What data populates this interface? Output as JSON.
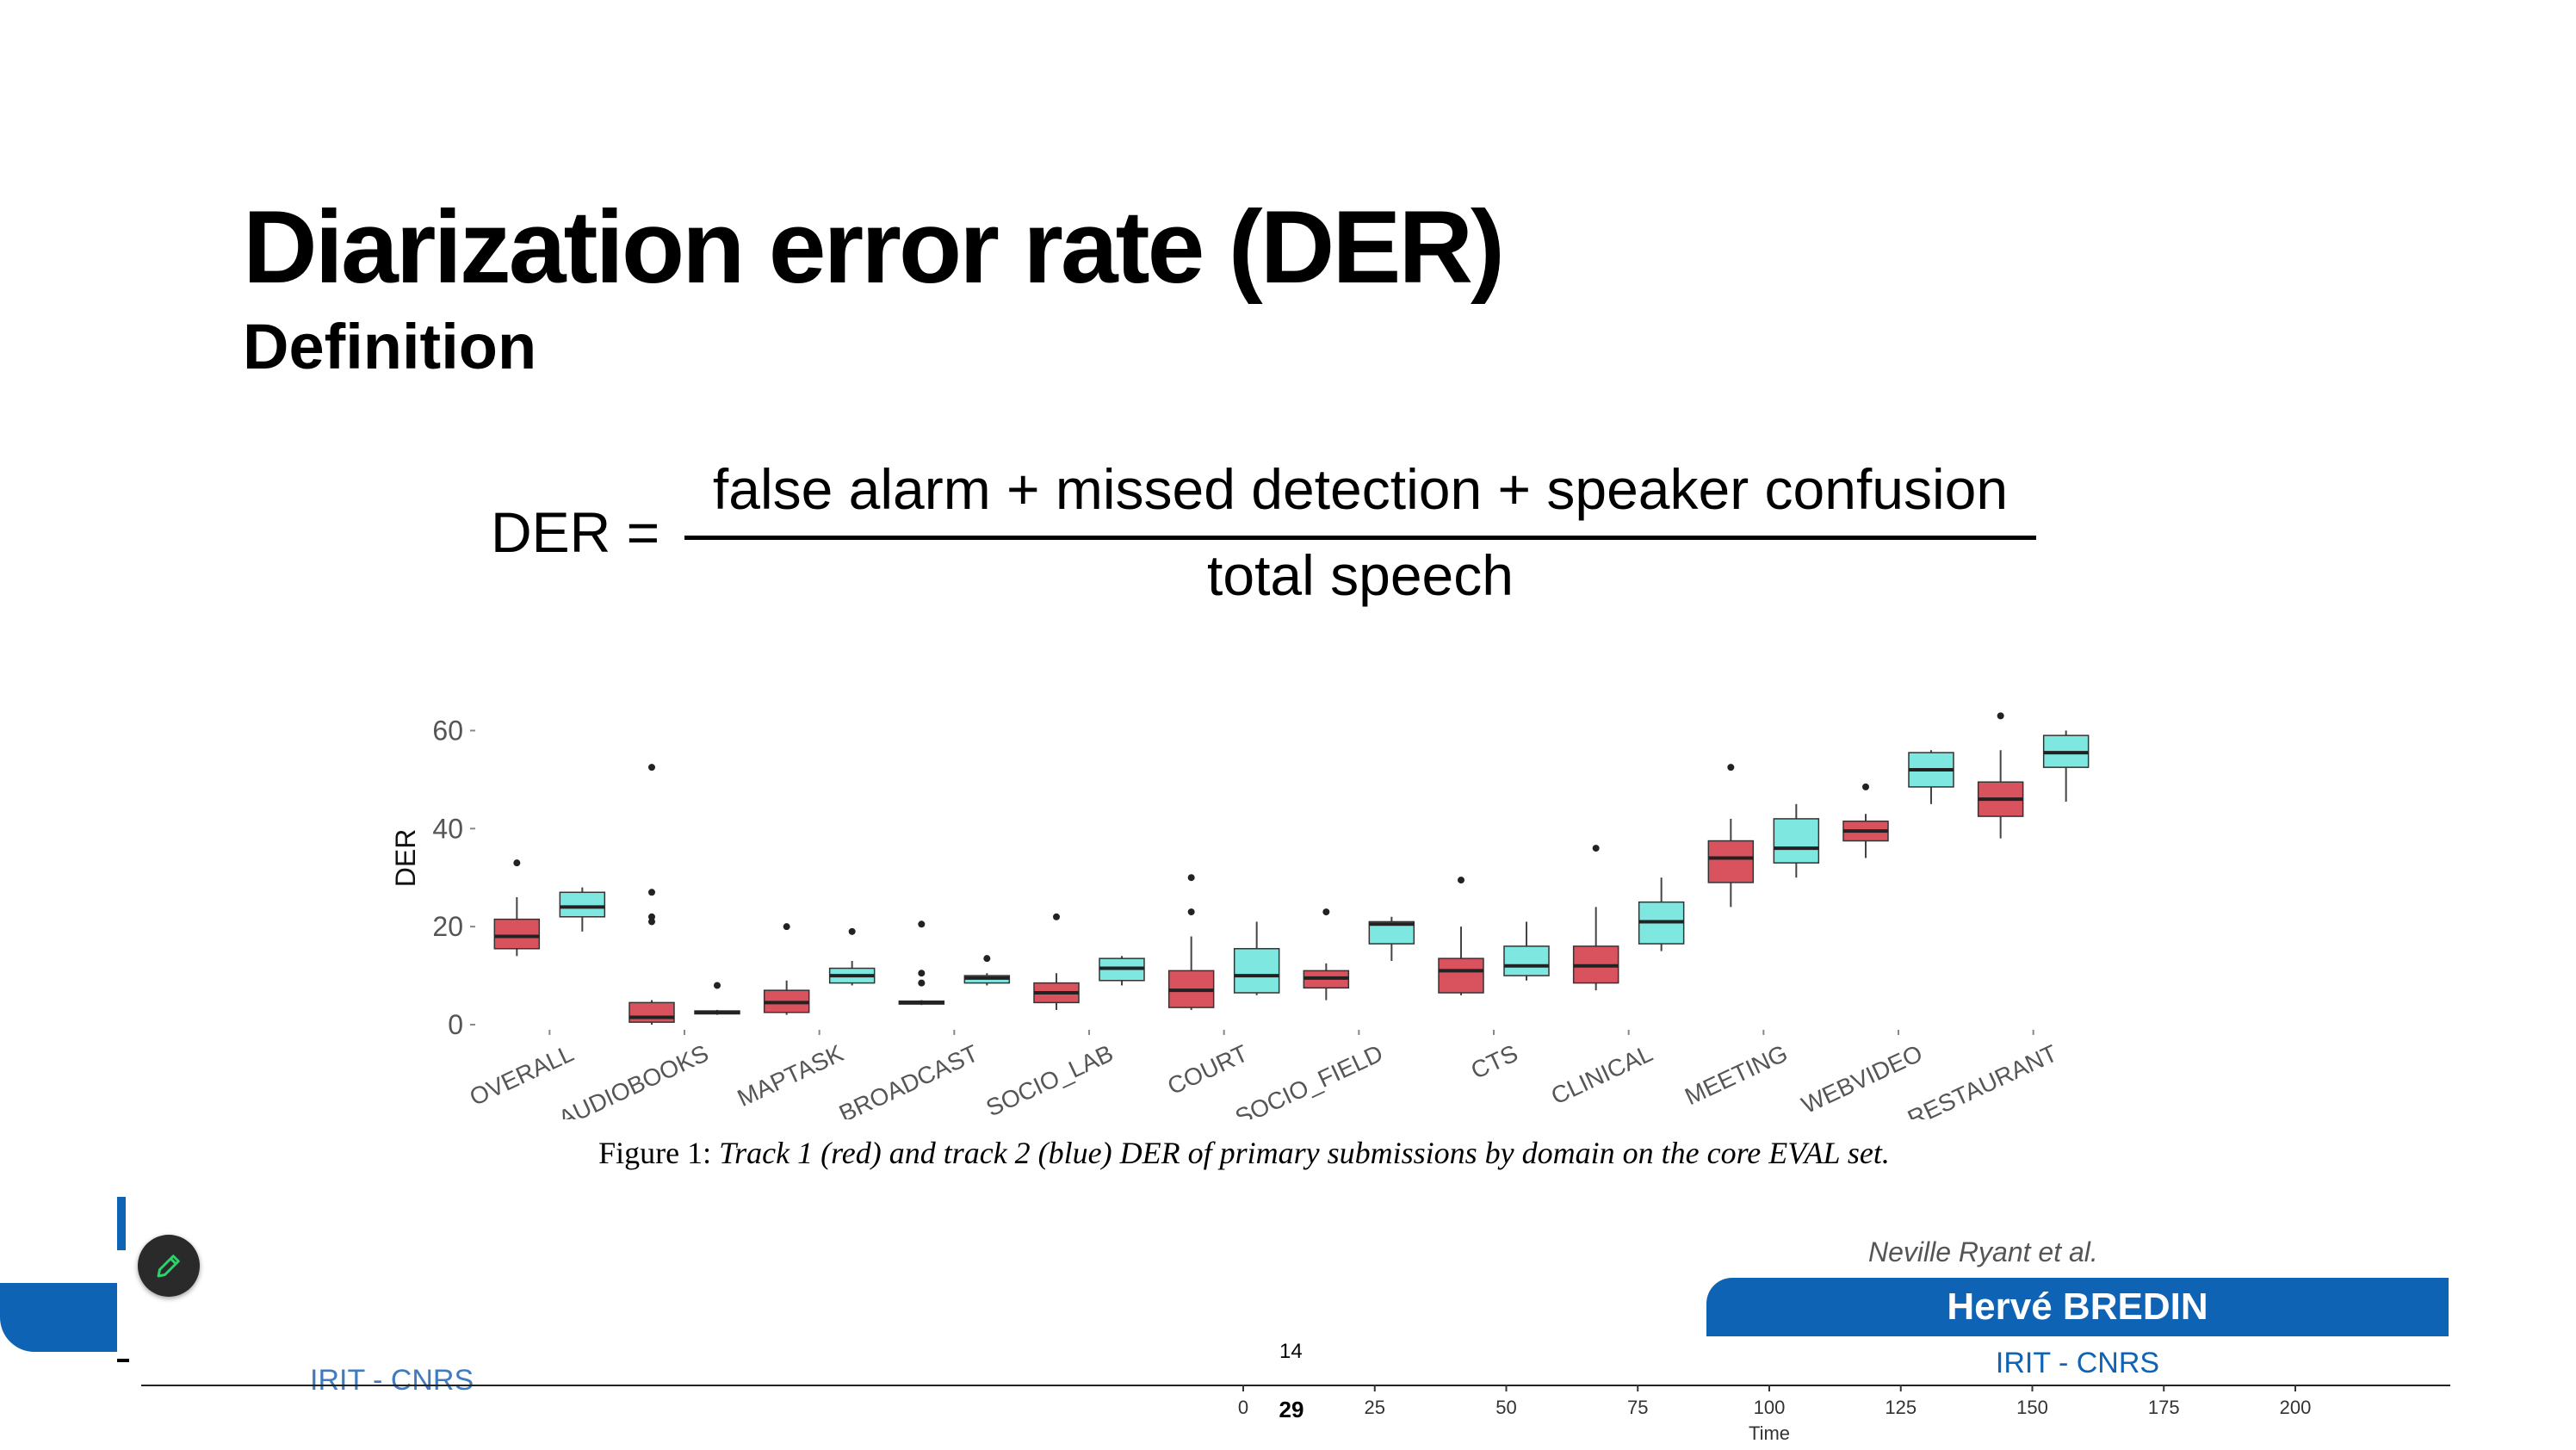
{
  "slide": {
    "title": "Diarization error rate (DER)",
    "subtitle": "Definition"
  },
  "formula": {
    "lhs": "DER =",
    "numerator": "false alarm + missed detection + speaker confusion",
    "denominator": "total speech"
  },
  "chart_data": {
    "type": "box",
    "ylabel": "DER",
    "xlabel": "",
    "ylim": [
      0,
      65
    ],
    "yticks": [
      0,
      20,
      40,
      60
    ],
    "categories": [
      "OVERALL",
      "AUDIOBOOKS",
      "MAPTASK",
      "BROADCAST",
      "SOCIO_LAB",
      "COURT",
      "SOCIO_FIELD",
      "CTS",
      "CLINICAL",
      "MEETING",
      "WEBVIDEO",
      "RESTAURANT"
    ],
    "series": [
      {
        "color": "#d9535f",
        "boxes": [
          {
            "min": 14,
            "q1": 15.5,
            "median": 18,
            "q3": 21.5,
            "max": 26,
            "outliers": [
              33
            ]
          },
          {
            "min": 0,
            "q1": 0.5,
            "median": 1.5,
            "q3": 4.5,
            "max": 5,
            "outliers": [
              21,
              22,
              27,
              52.5
            ]
          },
          {
            "min": 2,
            "q1": 2.5,
            "median": 4.5,
            "q3": 7,
            "max": 9,
            "outliers": [
              20
            ]
          },
          {
            "min": 4,
            "q1": 4.2,
            "median": 4.5,
            "q3": 4.8,
            "max": 5,
            "outliers": [
              8.5,
              10.5,
              20.5
            ]
          },
          {
            "min": 3,
            "q1": 4.5,
            "median": 6.5,
            "q3": 8.5,
            "max": 10.5,
            "outliers": [
              22
            ]
          },
          {
            "min": 3,
            "q1": 3.5,
            "median": 7,
            "q3": 11,
            "max": 18,
            "outliers": [
              23,
              30
            ]
          },
          {
            "min": 5,
            "q1": 7.5,
            "median": 9.5,
            "q3": 11,
            "max": 12.5,
            "outliers": [
              23
            ]
          },
          {
            "min": 6,
            "q1": 6.5,
            "median": 11,
            "q3": 13.5,
            "max": 20,
            "outliers": [
              29.5
            ]
          },
          {
            "min": 7,
            "q1": 8.5,
            "median": 12,
            "q3": 16,
            "max": 24,
            "outliers": [
              36
            ]
          },
          {
            "min": 24,
            "q1": 29,
            "median": 34,
            "q3": 37.5,
            "max": 42,
            "outliers": [
              52.5
            ]
          },
          {
            "min": 34,
            "q1": 37.5,
            "median": 39.5,
            "q3": 41.5,
            "max": 43,
            "outliers": [
              48.5
            ]
          },
          {
            "min": 38,
            "q1": 42.5,
            "median": 46,
            "q3": 49.5,
            "max": 56,
            "outliers": [
              63
            ]
          }
        ]
      },
      {
        "color": "#7ee8e0",
        "boxes": [
          {
            "min": 19,
            "q1": 22,
            "median": 24,
            "q3": 27,
            "max": 28,
            "outliers": []
          },
          {
            "min": 2,
            "q1": 2.2,
            "median": 2.5,
            "q3": 2.8,
            "max": 3,
            "outliers": [
              8
            ]
          },
          {
            "min": 8,
            "q1": 8.5,
            "median": 10,
            "q3": 11.5,
            "max": 13,
            "outliers": [
              19
            ]
          },
          {
            "min": 8,
            "q1": 8.5,
            "median": 9.5,
            "q3": 10,
            "max": 10.5,
            "outliers": [
              13.5
            ]
          },
          {
            "min": 8,
            "q1": 9,
            "median": 11.5,
            "q3": 13.5,
            "max": 14,
            "outliers": []
          },
          {
            "min": 6,
            "q1": 6.5,
            "median": 10,
            "q3": 15.5,
            "max": 21,
            "outliers": []
          },
          {
            "min": 13,
            "q1": 16.5,
            "median": 20.5,
            "q3": 21,
            "max": 22,
            "outliers": []
          },
          {
            "min": 9,
            "q1": 10,
            "median": 12,
            "q3": 16,
            "max": 21,
            "outliers": []
          },
          {
            "min": 15,
            "q1": 16.5,
            "median": 21,
            "q3": 25,
            "max": 30,
            "outliers": []
          },
          {
            "min": 30,
            "q1": 33,
            "median": 36,
            "q3": 42,
            "max": 45,
            "outliers": []
          },
          {
            "min": 45,
            "q1": 48.5,
            "median": 52,
            "q3": 55.5,
            "max": 56,
            "outliers": []
          },
          {
            "min": 45.5,
            "q1": 52.5,
            "median": 55.5,
            "q3": 59,
            "max": 60,
            "outliers": []
          }
        ]
      }
    ]
  },
  "caption": {
    "prefix": "Figure 1:",
    "text": "Track 1 (red) and track 2 (blue) DER of primary submissions by domain on the core EVAL set."
  },
  "footer": {
    "citation": "Neville Ryant et al.",
    "presenter": "Hervé BREDIN",
    "affiliation": "IRIT - CNRS",
    "affiliation_partial": "IRIT - CNRS",
    "slide_number_small": "14",
    "slide_number": "29"
  },
  "timeline": {
    "ticks": [
      "0",
      "25",
      "50",
      "75",
      "100",
      "125",
      "150",
      "175",
      "200"
    ],
    "label": "Time"
  },
  "toolbar": {
    "edit_icon": "pencil-icon"
  }
}
